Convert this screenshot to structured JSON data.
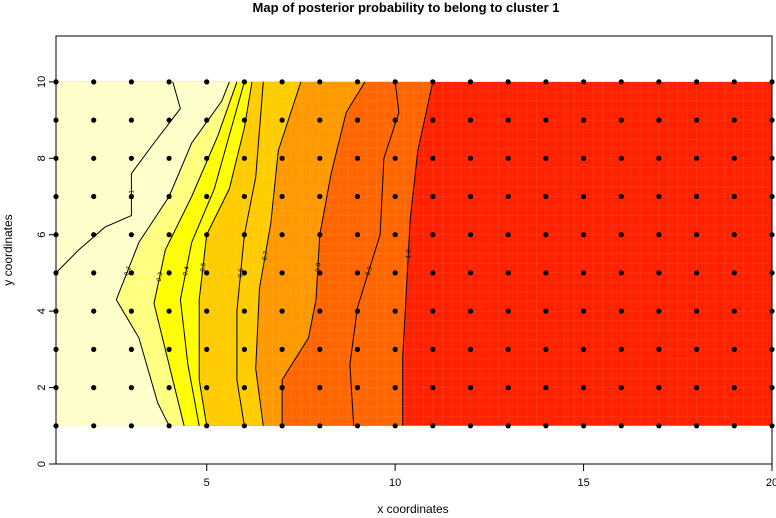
{
  "chart_data": {
    "type": "heatmap",
    "title": "Map of posterior probability to belong to cluster  1",
    "xlabel": "x coordinates",
    "ylabel": "y coordinates",
    "xlim": [
      1,
      20
    ],
    "ylim": [
      0,
      11.2
    ],
    "xticks": [
      5,
      10,
      15,
      20
    ],
    "yticks": [
      0,
      2,
      4,
      6,
      8,
      10
    ],
    "grid_x": [
      1,
      20
    ],
    "grid_y": [
      1,
      10
    ],
    "colors": {
      "very_low": "#ffffcc",
      "low": "#ffff80",
      "mid_low": "#ffff00",
      "mid": "#ffcc00",
      "mid_high": "#ff9900",
      "high": "#ff6600",
      "very_high": "#ff2200"
    },
    "points": {
      "x_from": 1,
      "x_to": 20,
      "y_from": 1,
      "y_to": 10,
      "step": 1
    },
    "contours": [
      {
        "label": "0.1",
        "points": [
          [
            1,
            5
          ],
          [
            1.6,
            5.6
          ],
          [
            2.3,
            6.2
          ],
          [
            3,
            6.5
          ],
          [
            3,
            7.6
          ],
          [
            3.6,
            8.4
          ],
          [
            4.3,
            9.3
          ],
          [
            4.1,
            10
          ]
        ]
      },
      {
        "label": "0.2",
        "points": [
          [
            4,
            1
          ],
          [
            3.7,
            1.6
          ],
          [
            3.2,
            3.3
          ],
          [
            2.6,
            4.3
          ],
          [
            3.2,
            5.8
          ],
          [
            4,
            7
          ],
          [
            4.6,
            8.4
          ],
          [
            5.4,
            9.5
          ],
          [
            5.6,
            10
          ]
        ]
      },
      {
        "label": "0.3",
        "points": [
          [
            4.4,
            1
          ],
          [
            4.1,
            2.2
          ],
          [
            3.6,
            4.2
          ],
          [
            3.9,
            5.6
          ],
          [
            4.6,
            7
          ],
          [
            5.3,
            8.6
          ],
          [
            5.8,
            10
          ]
        ]
      },
      {
        "label": "0.4",
        "points": [
          [
            4.8,
            1
          ],
          [
            4.5,
            2.6
          ],
          [
            4.3,
            4.3
          ],
          [
            4.6,
            5.8
          ],
          [
            5.2,
            7.2
          ],
          [
            5.6,
            8.6
          ],
          [
            6,
            10
          ]
        ]
      },
      {
        "label": "0.5",
        "points": [
          [
            5,
            1
          ],
          [
            4.8,
            2.2
          ],
          [
            4.8,
            4.3
          ],
          [
            5,
            6
          ],
          [
            5.6,
            7.2
          ],
          [
            6,
            8.8
          ],
          [
            6.2,
            10
          ]
        ]
      },
      {
        "label": "0.6",
        "points": [
          [
            6,
            1
          ],
          [
            5.8,
            2.2
          ],
          [
            5.8,
            4
          ],
          [
            6,
            6
          ],
          [
            6.3,
            7.5
          ],
          [
            6.5,
            10
          ]
        ]
      },
      {
        "label": "0.7",
        "points": [
          [
            6.5,
            1
          ],
          [
            6.3,
            2.5
          ],
          [
            6.4,
            4.6
          ],
          [
            6.7,
            6.3
          ],
          [
            6.9,
            8.2
          ],
          [
            7.5,
            10
          ]
        ]
      },
      {
        "label": "0.8",
        "points": [
          [
            7,
            1
          ],
          [
            7,
            2.2
          ],
          [
            7.7,
            3.3
          ],
          [
            7.9,
            4.3
          ],
          [
            8,
            6
          ],
          [
            8.3,
            7.6
          ],
          [
            8.7,
            9.2
          ],
          [
            9.2,
            10
          ]
        ]
      },
      {
        "label": "0.9",
        "points": [
          [
            8.9,
            1
          ],
          [
            8.8,
            2.6
          ],
          [
            9,
            4.1
          ],
          [
            9.6,
            6
          ],
          [
            9.7,
            8
          ],
          [
            10.1,
            9.2
          ],
          [
            10,
            10
          ]
        ]
      },
      {
        "label": "1.0",
        "points": [
          [
            10.2,
            1
          ],
          [
            10.2,
            2.8
          ],
          [
            10.3,
            4.6
          ],
          [
            10.4,
            6.4
          ],
          [
            10.6,
            8.2
          ],
          [
            11,
            10
          ]
        ]
      }
    ],
    "bands": [
      {
        "color": "#ff2200",
        "from_x": 10.6
      },
      {
        "color": "#ff6600",
        "from_x": 7.8
      },
      {
        "color": "#ff9900",
        "from_x": 6.4
      },
      {
        "color": "#ffcc00",
        "from_x": 5.5
      },
      {
        "color": "#ffff00",
        "from_x": 4.6
      },
      {
        "color": "#ffff80",
        "from_x": 3.9
      },
      {
        "color": "#ffffcc",
        "from_x": 1
      }
    ]
  }
}
